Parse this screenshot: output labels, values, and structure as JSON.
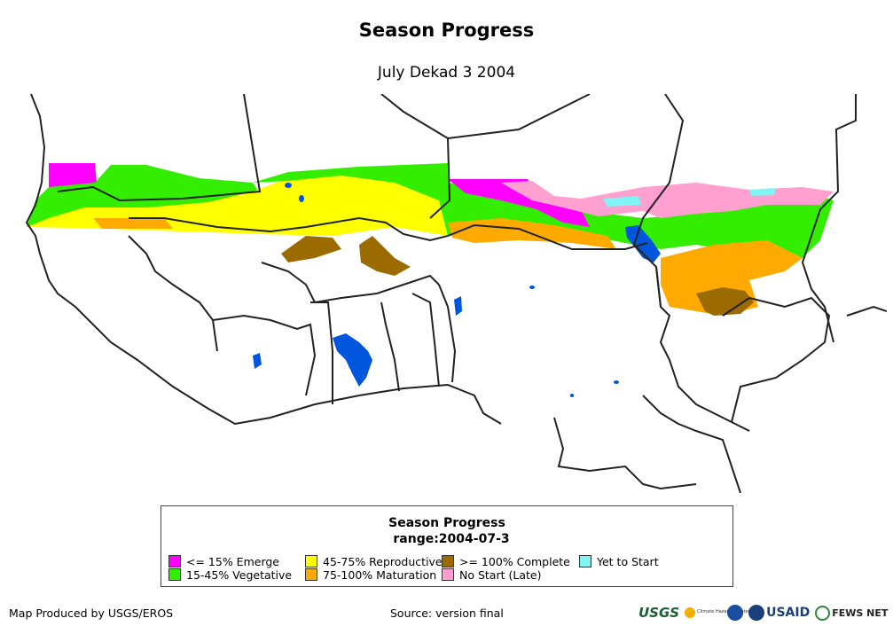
{
  "title": "Season Progress",
  "subtitle": "July Dekad 3 2004",
  "legend": {
    "title": "Season Progress",
    "subtitle": "range:2004-07-3",
    "items": [
      {
        "label": "<= 15% Emerge",
        "color": "#ff00ff"
      },
      {
        "label": "15-45% Vegetative",
        "color": "#33ee00"
      },
      {
        "label": "45-75% Reproductive",
        "color": "#ffff00"
      },
      {
        "label": "75-100% Maturation",
        "color": "#ffaa00"
      },
      {
        "label": ">= 100% Complete",
        "color": "#9b6b00"
      },
      {
        "label": "No Start (Late)",
        "color": "#ffa0d0"
      },
      {
        "label": "Yet to Start",
        "color": "#7ff5f5"
      }
    ]
  },
  "credits": {
    "left": "Map Produced by USGS/EROS",
    "center": "Source: version final"
  },
  "logos": {
    "usgs": "USGS",
    "chc": "Climate Hazards Center",
    "usaid": "USAID",
    "fews": "FEWS NET"
  },
  "colors": {
    "water": "#0055dd",
    "border": "#222222"
  }
}
